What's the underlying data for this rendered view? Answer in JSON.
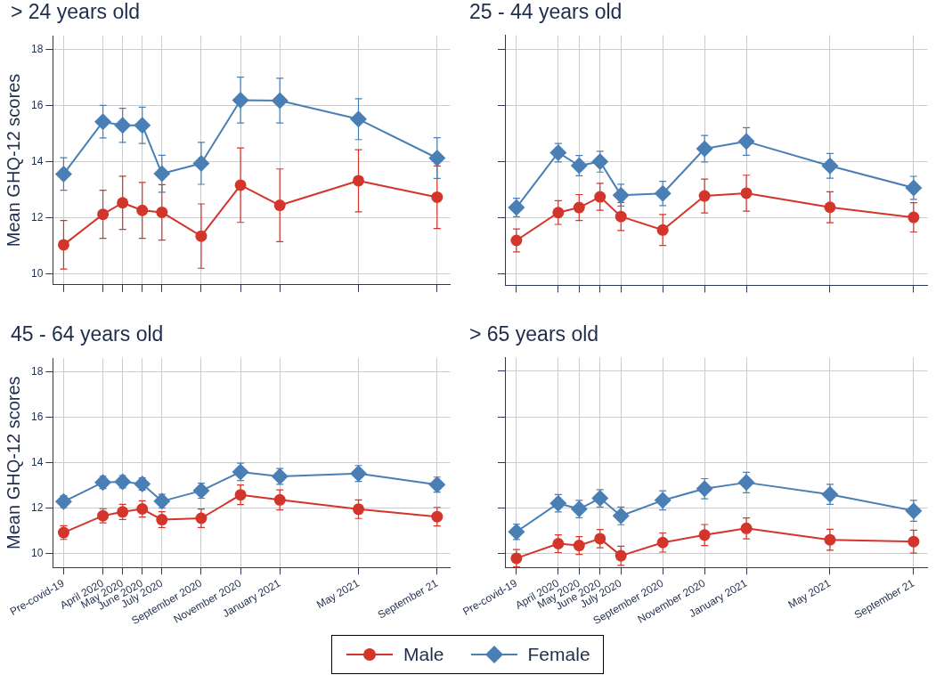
{
  "chart_data": [
    {
      "type": "line",
      "title": "> 24 years old",
      "ylabel": "Mean GHQ-12 scores",
      "x": [
        "2020-02",
        "2020-04",
        "2020-05",
        "2020-06",
        "2020-07",
        "2020-09",
        "2020-11",
        "2021-01",
        "2021-05",
        "2021-09"
      ],
      "xlim": [
        "2020-01-15",
        "2021-09-21"
      ],
      "xticks": [
        {
          "value": "2020-02",
          "label": null
        },
        {
          "value": "2020-04",
          "label": null
        },
        {
          "value": "2020-05",
          "label": null
        },
        {
          "value": "2020-06",
          "label": null
        },
        {
          "value": "2020-07",
          "label": null
        },
        {
          "value": "2020-09",
          "label": null
        },
        {
          "value": "2020-11",
          "label": null
        },
        {
          "value": "2021-01",
          "label": null
        },
        {
          "value": "2021-05",
          "label": null
        },
        {
          "value": "2021-09",
          "label": null
        }
      ],
      "ylim": [
        9.6,
        18.5
      ],
      "yticks": [
        10,
        12,
        14,
        16,
        18
      ],
      "grid": true,
      "tick_labels": "y",
      "legend": "bottom",
      "series": [
        {
          "name": "Male",
          "color": "#d3352b",
          "marker": "circle",
          "values": [
            11.03,
            12.12,
            12.53,
            12.26,
            12.19,
            11.34,
            13.16,
            12.44,
            13.32,
            12.73
          ],
          "errors": [
            0.87,
            0.86,
            0.95,
            1.0,
            0.99,
            1.15,
            1.33,
            1.3,
            1.11,
            1.12
          ]
        },
        {
          "name": "Female",
          "color": "#4a7fb5",
          "marker": "diamond",
          "values": [
            13.56,
            15.43,
            15.3,
            15.3,
            13.57,
            13.94,
            16.2,
            16.18,
            15.52,
            14.13
          ],
          "errors": [
            0.58,
            0.58,
            0.61,
            0.65,
            0.66,
            0.75,
            0.82,
            0.8,
            0.73,
            0.73
          ]
        }
      ]
    },
    {
      "type": "line",
      "title": "25 - 44 years old",
      "x": [
        "2020-02",
        "2020-04",
        "2020-05",
        "2020-06",
        "2020-07",
        "2020-09",
        "2020-11",
        "2021-01",
        "2021-05",
        "2021-09"
      ],
      "xlim": [
        "2020-01-15",
        "2021-09-21"
      ],
      "xticks": [
        {
          "value": "2020-02",
          "label": null
        },
        {
          "value": "2020-04",
          "label": null
        },
        {
          "value": "2020-05",
          "label": null
        },
        {
          "value": "2020-06",
          "label": null
        },
        {
          "value": "2020-07",
          "label": null
        },
        {
          "value": "2020-09",
          "label": null
        },
        {
          "value": "2020-11",
          "label": null
        },
        {
          "value": "2021-01",
          "label": null
        },
        {
          "value": "2021-05",
          "label": null
        },
        {
          "value": "2021-09",
          "label": null
        }
      ],
      "ylim": [
        9.6,
        18.5
      ],
      "yticks": [
        10,
        12,
        14,
        16,
        18
      ],
      "grid": true,
      "tick_labels": false,
      "series": [
        {
          "color": "#d3352b",
          "marker": "circle",
          "values": [
            11.2,
            12.19,
            12.37,
            12.75,
            12.05,
            11.57,
            12.78,
            12.88,
            12.38,
            12.02
          ],
          "errors": [
            0.41,
            0.42,
            0.46,
            0.48,
            0.5,
            0.55,
            0.6,
            0.64,
            0.55,
            0.52
          ]
        },
        {
          "color": "#4a7fb5",
          "marker": "diamond",
          "values": [
            12.37,
            14.32,
            13.86,
            14.0,
            12.81,
            12.87,
            14.46,
            14.72,
            13.85,
            13.07
          ],
          "errors": [
            0.33,
            0.33,
            0.36,
            0.37,
            0.39,
            0.43,
            0.47,
            0.49,
            0.44,
            0.41
          ]
        }
      ]
    },
    {
      "type": "line",
      "title": "45 - 64 years old",
      "ylabel": "Mean GHQ-12 scores",
      "x": [
        "2020-02",
        "2020-04",
        "2020-05",
        "2020-06",
        "2020-07",
        "2020-09",
        "2020-11",
        "2021-01",
        "2021-05",
        "2021-09"
      ],
      "xlim": [
        "2020-01-15",
        "2021-09-21"
      ],
      "xticks": [
        {
          "value": "2020-02",
          "label": "Pre-covid-19"
        },
        {
          "value": "2020-04",
          "label": "April 2020"
        },
        {
          "value": "2020-05",
          "label": "May 2020"
        },
        {
          "value": "2020-06",
          "label": "June 2020"
        },
        {
          "value": "2020-07",
          "label": "July 2020"
        },
        {
          "value": "2020-09",
          "label": "September 2020"
        },
        {
          "value": "2020-11",
          "label": "November 2020"
        },
        {
          "value": "2021-01",
          "label": "January 2021"
        },
        {
          "value": "2021-05",
          "label": "May 2021"
        },
        {
          "value": "2021-09",
          "label": "September 21"
        }
      ],
      "ylim": [
        9.4,
        18.6
      ],
      "yticks": [
        10,
        12,
        14,
        16,
        18
      ],
      "grid": true,
      "series": [
        {
          "color": "#d3352b",
          "marker": "circle",
          "values": [
            10.93,
            11.67,
            11.84,
            11.97,
            11.5,
            11.56,
            12.59,
            12.37,
            11.96,
            11.63
          ],
          "errors": [
            0.3,
            0.31,
            0.33,
            0.36,
            0.35,
            0.41,
            0.43,
            0.44,
            0.41,
            0.41
          ]
        },
        {
          "color": "#4a7fb5",
          "marker": "diamond",
          "values": [
            12.29,
            13.14,
            13.17,
            13.07,
            12.31,
            12.77,
            13.6,
            13.4,
            13.53,
            13.04
          ],
          "errors": [
            0.26,
            0.27,
            0.27,
            0.27,
            0.3,
            0.33,
            0.38,
            0.35,
            0.35,
            0.33
          ]
        }
      ]
    },
    {
      "type": "line",
      "title": "> 65 years old",
      "x": [
        "2020-02",
        "2020-04",
        "2020-05",
        "2020-06",
        "2020-07",
        "2020-09",
        "2020-11",
        "2021-01",
        "2021-05",
        "2021-09"
      ],
      "xlim": [
        "2020-01-15",
        "2021-09-21"
      ],
      "xticks": [
        {
          "value": "2020-02",
          "label": "Pre-covid-19"
        },
        {
          "value": "2020-04",
          "label": "April 2020"
        },
        {
          "value": "2020-05",
          "label": "May 2020"
        },
        {
          "value": "2020-06",
          "label": "June 2020"
        },
        {
          "value": "2020-07",
          "label": "July 2020"
        },
        {
          "value": "2020-09",
          "label": "September 2020"
        },
        {
          "value": "2020-11",
          "label": "November 2020"
        },
        {
          "value": "2021-01",
          "label": "January 2021"
        },
        {
          "value": "2021-05",
          "label": "May 2021"
        },
        {
          "value": "2021-09",
          "label": "September 21"
        }
      ],
      "ylim": [
        9.4,
        18.6
      ],
      "yticks": [
        10,
        12,
        14,
        16,
        18
      ],
      "grid": true,
      "tick_labels": "x",
      "series": [
        {
          "color": "#d3352b",
          "marker": "circle",
          "values": [
            9.8,
            10.44,
            10.36,
            10.66,
            9.91,
            10.49,
            10.82,
            11.11,
            10.61,
            10.53
          ],
          "errors": [
            0.38,
            0.39,
            0.39,
            0.4,
            0.42,
            0.42,
            0.46,
            0.46,
            0.46,
            0.5
          ]
        },
        {
          "color": "#4a7fb5",
          "marker": "diamond",
          "values": [
            10.96,
            12.21,
            11.96,
            12.43,
            11.66,
            12.34,
            12.85,
            13.12,
            12.6,
            11.88
          ],
          "errors": [
            0.34,
            0.38,
            0.38,
            0.38,
            0.39,
            0.42,
            0.44,
            0.45,
            0.44,
            0.46
          ]
        }
      ]
    }
  ]
}
